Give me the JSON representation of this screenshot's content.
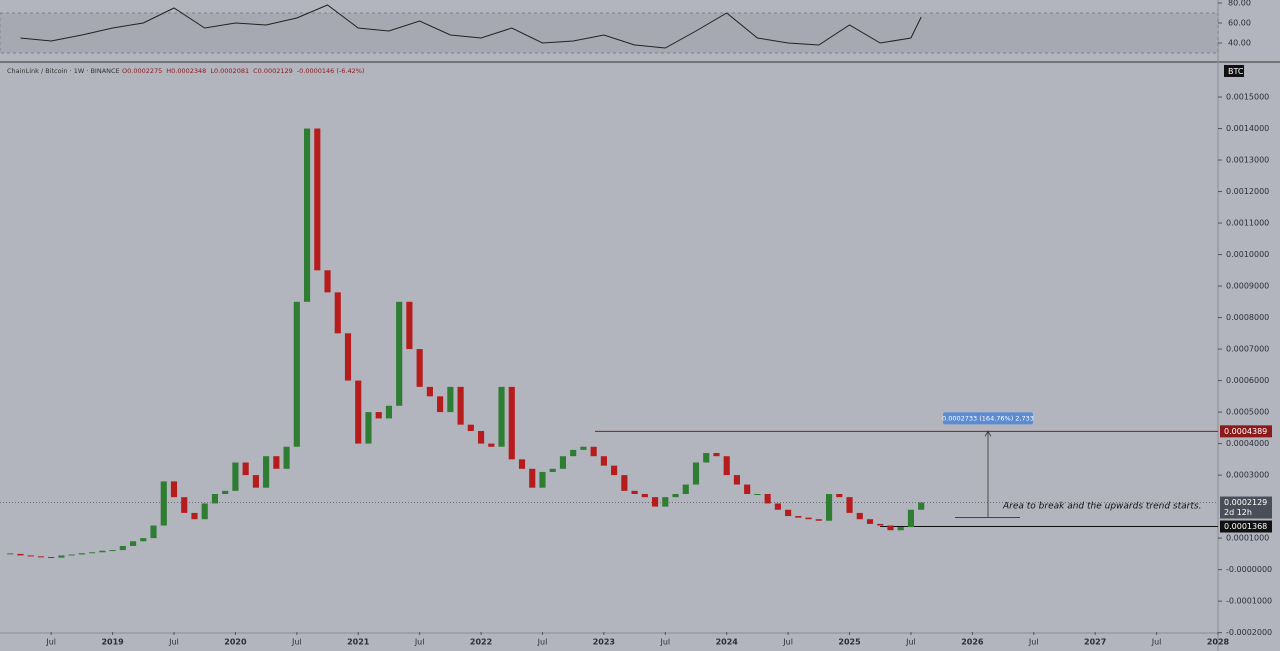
{
  "chart_data": [
    {
      "type": "candlestick",
      "title": "ChainLink / Bitcoin · 1W · BINANCE",
      "ohlc": [
        "O0.0002275",
        "H0.0002348",
        "L0.0002081",
        "C0.0002129",
        "-0.0000146 (-6.42%)"
      ],
      "currency": "BTC",
      "x": [
        "2018-03",
        "2018-04",
        "2018-05",
        "2018-06",
        "2018-07",
        "2018-08",
        "2018-09",
        "2018-10",
        "2018-11",
        "2018-12",
        "2019-01",
        "2019-02",
        "2019-03",
        "2019-04",
        "2019-05",
        "2019-06",
        "2019-07",
        "2019-08",
        "2019-09",
        "2019-10",
        "2019-11",
        "2019-12",
        "2020-01",
        "2020-02",
        "2020-03",
        "2020-04",
        "2020-05",
        "2020-06",
        "2020-07",
        "2020-08",
        "2020-09",
        "2020-10",
        "2020-11",
        "2020-12",
        "2021-01",
        "2021-02",
        "2021-03",
        "2021-04",
        "2021-05",
        "2021-06",
        "2021-07",
        "2021-08",
        "2021-09",
        "2021-10",
        "2021-11",
        "2021-12",
        "2022-01",
        "2022-02",
        "2022-03",
        "2022-04",
        "2022-05",
        "2022-06",
        "2022-07",
        "2022-08",
        "2022-09",
        "2022-10",
        "2022-11",
        "2022-12",
        "2023-01",
        "2023-02",
        "2023-03",
        "2023-04",
        "2023-05",
        "2023-06",
        "2023-07",
        "2023-08",
        "2023-09",
        "2023-10",
        "2023-11",
        "2023-12",
        "2024-01",
        "2024-02",
        "2024-03",
        "2024-04",
        "2024-05",
        "2024-06",
        "2024-07",
        "2024-08",
        "2024-09",
        "2024-10",
        "2024-11",
        "2024-12",
        "2025-01",
        "2025-02",
        "2025-03",
        "2025-04",
        "2025-05",
        "2025-06",
        "2025-07",
        "2025-08"
      ],
      "values": [
        5e-05,
        4.5e-05,
        4.2e-05,
        4e-05,
        3.8e-05,
        4.5e-05,
        4.8e-05,
        5.2e-05,
        5.5e-05,
        6e-05,
        6.2e-05,
        7.5e-05,
        9e-05,
        0.0001,
        0.00014,
        0.00028,
        0.00023,
        0.00018,
        0.00016,
        0.00021,
        0.00024,
        0.00025,
        0.00034,
        0.0003,
        0.00026,
        0.00036,
        0.00032,
        0.00039,
        0.00085,
        0.0014,
        0.00095,
        0.00088,
        0.00075,
        0.0006,
        0.0004,
        0.0005,
        0.00048,
        0.00052,
        0.00085,
        0.0007,
        0.00058,
        0.00055,
        0.0005,
        0.00058,
        0.00046,
        0.00044,
        0.0004,
        0.00039,
        0.00058,
        0.00035,
        0.00032,
        0.00026,
        0.00031,
        0.00032,
        0.00036,
        0.00038,
        0.00039,
        0.00036,
        0.00033,
        0.0003,
        0.00025,
        0.00024,
        0.00023,
        0.0002,
        0.00023,
        0.00024,
        0.00027,
        0.00034,
        0.00037,
        0.00036,
        0.0003,
        0.00027,
        0.00024,
        0.00024,
        0.00021,
        0.00019,
        0.00017,
        0.000165,
        0.00016,
        0.000155,
        0.00024,
        0.00023,
        0.00018,
        0.00016,
        0.000145,
        0.00014,
        0.000125,
        0.000135,
        0.00019,
        0.0002129
      ],
      "up_color": "#2e7d32",
      "down_color": "#b71c1c",
      "xlim": [
        "2018-02",
        "2028-01"
      ],
      "xticks": [
        {
          "value": "2018-07",
          "label": "Jul"
        },
        {
          "value": "2019-01",
          "label": "2019"
        },
        {
          "value": "2019-07",
          "label": "Jul"
        },
        {
          "value": "2020-01",
          "label": "2020"
        },
        {
          "value": "2020-07",
          "label": "Jul"
        },
        {
          "value": "2021-01",
          "label": "2021"
        },
        {
          "value": "2021-07",
          "label": "Jul"
        },
        {
          "value": "2022-01",
          "label": "2022"
        },
        {
          "value": "2022-07",
          "label": "Jul"
        },
        {
          "value": "2023-01",
          "label": "2023"
        },
        {
          "value": "2023-07",
          "label": "Jul"
        },
        {
          "value": "2024-01",
          "label": "2024"
        },
        {
          "value": "2024-07",
          "label": "Jul"
        },
        {
          "value": "2025-01",
          "label": "2025"
        },
        {
          "value": "2025-07",
          "label": "Jul"
        },
        {
          "value": "2026-01",
          "label": "2026"
        },
        {
          "value": "2026-07",
          "label": "Jul"
        },
        {
          "value": "2027-01",
          "label": "2027"
        },
        {
          "value": "2027-07",
          "label": "Jul"
        },
        {
          "value": "2028-01",
          "label": "2028"
        }
      ],
      "ylim": [
        -0.000198,
        0.001608
      ],
      "yticks": [
        {
          "value": 0.0015,
          "label": "0.0015000"
        },
        {
          "value": 0.0014,
          "label": "0.0014000"
        },
        {
          "value": 0.0013,
          "label": "0.0013000"
        },
        {
          "value": 0.0012,
          "label": "0.0012000"
        },
        {
          "value": 0.0011,
          "label": "0.0011000"
        },
        {
          "value": 0.001,
          "label": "0.0010000"
        },
        {
          "value": 0.0009,
          "label": "0.0009000"
        },
        {
          "value": 0.0008,
          "label": "0.0008000"
        },
        {
          "value": 0.0007,
          "label": "0.0007000"
        },
        {
          "value": 0.0006,
          "label": "0.0006000"
        },
        {
          "value": 0.0005,
          "label": "0.0005000"
        },
        {
          "value": 0.0004,
          "label": "0.0004000"
        },
        {
          "value": 0.0003,
          "label": "0.0003000"
        },
        {
          "value": 0.0001,
          "label": "0.0001000"
        },
        {
          "value": 0,
          "label": "-0.0000000"
        },
        {
          "value": -0.0001,
          "label": "-0.0001000"
        },
        {
          "value": -0.0002,
          "label": "-0.0002000"
        }
      ],
      "levels": [
        {
          "value": 0.0004389,
          "color": "#8b1a1a"
        },
        {
          "value": 0.0001368,
          "color": "#111111"
        }
      ],
      "last_color": "#4a4e59",
      "countdown": "2d 12h",
      "measure": {
        "low": 0.0001656,
        "label": "0.0002733 (164.76%) 2,733",
        "color": "#5b8bd0"
      },
      "annotation": "Area to break and the upwards trend starts."
    },
    {
      "type": "line",
      "x": [
        "2018-04",
        "2018-07",
        "2018-10",
        "2019-01",
        "2019-04",
        "2019-07",
        "2019-10",
        "2020-01",
        "2020-04",
        "2020-07",
        "2020-10",
        "2021-01",
        "2021-04",
        "2021-07",
        "2021-10",
        "2022-01",
        "2022-04",
        "2022-07",
        "2022-10",
        "2023-01",
        "2023-04",
        "2023-07",
        "2023-10",
        "2024-01",
        "2024-04",
        "2024-07",
        "2024-10",
        "2025-01",
        "2025-04",
        "2025-07",
        "2025-08"
      ],
      "values": [
        45,
        42,
        48,
        55,
        60,
        75,
        55,
        60,
        58,
        65,
        78,
        55,
        52,
        62,
        48,
        45,
        55,
        40,
        42,
        48,
        38,
        35,
        52,
        70,
        45,
        40,
        38,
        58,
        40,
        45,
        66
      ],
      "color": "#222222",
      "ylim": [
        23,
        83
      ],
      "yticks": [
        {
          "value": 80,
          "label": "80.00"
        },
        {
          "value": 60,
          "label": "60.00"
        },
        {
          "value": 40,
          "label": "40.00"
        }
      ],
      "band": [
        30,
        70
      ]
    }
  ]
}
